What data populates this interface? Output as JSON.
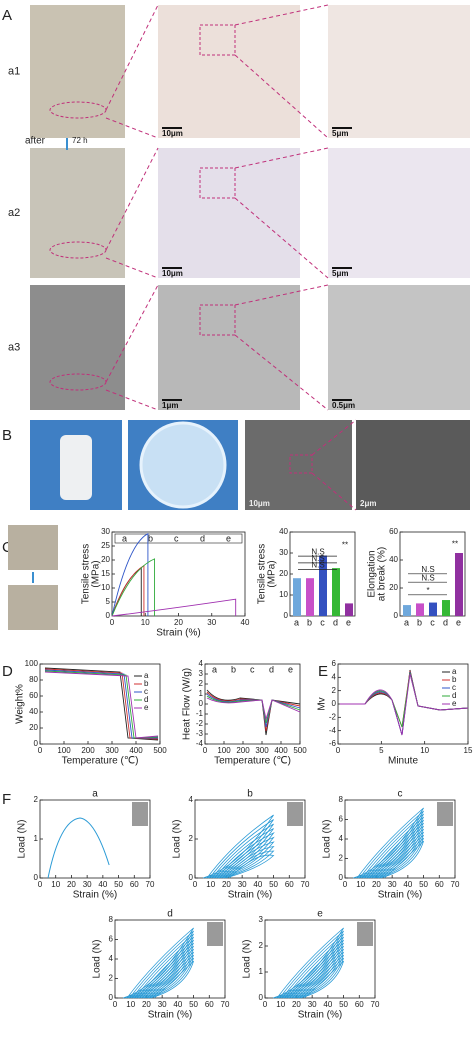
{
  "panel_labels": [
    "A",
    "B",
    "C",
    "D",
    "E",
    "F"
  ],
  "panel_a": {
    "row_labels": [
      "a1",
      "a2",
      "a3"
    ],
    "arrow_label": "after",
    "arrow_time": "72 h",
    "scale_bars": [
      [
        "10μm",
        "5μm"
      ],
      [
        "10μm",
        "5μm"
      ],
      [
        "1μm",
        "0.5μm"
      ]
    ]
  },
  "panel_b": {
    "scale_bars": [
      "10μm",
      "2μm"
    ]
  },
  "panel_c": {
    "curve": {
      "y_label": [
        "Tensile stress",
        "(MPa)"
      ],
      "x_label": "Strain (%)",
      "yticks": [
        0,
        5,
        10,
        15,
        20,
        25,
        30
      ],
      "xticks": [
        0,
        10,
        20,
        30,
        40
      ],
      "legend": [
        "a",
        "b",
        "c",
        "d",
        "e"
      ]
    },
    "strength": {
      "y_label": [
        "Tensile stress",
        "(MPa)"
      ],
      "yticks": [
        0,
        10,
        20,
        30,
        40
      ],
      "categories": [
        "a",
        "b",
        "c",
        "d",
        "e"
      ],
      "annotations": [
        "N.S",
        "N.S",
        "N.S",
        "**"
      ]
    },
    "elongation": {
      "y_label": [
        "Elongation",
        "at break (%)"
      ],
      "yticks": [
        0,
        20,
        40,
        60
      ],
      "categories": [
        "a",
        "b",
        "c",
        "d",
        "e"
      ],
      "annotations": [
        "*",
        "N.S",
        "N.S",
        "**"
      ]
    }
  },
  "panel_d": {
    "tga": {
      "y_label": "Weight%",
      "x_label": "Temperature (℃)",
      "yticks": [
        0,
        20,
        40,
        60,
        80,
        100
      ],
      "xticks": [
        0,
        100,
        200,
        300,
        400,
        500
      ],
      "legend": [
        "a",
        "b",
        "c",
        "d",
        "e"
      ]
    },
    "dsc": {
      "y_label": "Heat Flow (W/g)",
      "x_label": "Temperature (℃)",
      "yticks": [
        -4,
        -3,
        -2,
        -1,
        0,
        1,
        2,
        3,
        4
      ],
      "xticks": [
        0,
        100,
        200,
        300,
        400,
        500
      ],
      "legend": [
        "a",
        "b",
        "c",
        "d",
        "e"
      ]
    }
  },
  "panel_e": {
    "y_label": "Mv",
    "x_label": "Minute",
    "yticks": [
      -6,
      -4,
      -2,
      0,
      2,
      4,
      6
    ],
    "xticks": [
      0,
      5,
      10,
      15
    ],
    "legend": [
      "a",
      "b",
      "c",
      "d",
      "e"
    ]
  },
  "panel_f": [
    {
      "title": "a",
      "y_label": "Load (N)",
      "x_label": "Strain (%)",
      "yticks": [
        0,
        1,
        2
      ],
      "xticks": [
        0,
        10,
        20,
        30,
        40,
        50,
        60,
        70
      ]
    },
    {
      "title": "b",
      "y_label": "Load (N)",
      "x_label": "Strain (%)",
      "yticks": [
        0,
        2,
        4
      ],
      "xticks": [
        0,
        10,
        20,
        30,
        40,
        50,
        60,
        70
      ]
    },
    {
      "title": "c",
      "y_label": "Load (N)",
      "x_label": "Strain (%)",
      "yticks": [
        0,
        2,
        4,
        6,
        8
      ],
      "xticks": [
        0,
        10,
        20,
        30,
        40,
        50,
        60,
        70
      ]
    },
    {
      "title": "d",
      "y_label": "Load (N)",
      "x_label": "Strain (%)",
      "yticks": [
        0,
        2,
        4,
        6,
        8
      ],
      "xticks": [
        0,
        10,
        20,
        30,
        40,
        50,
        60,
        70
      ]
    },
    {
      "title": "e",
      "y_label": "Load (N)",
      "x_label": "Strain (%)",
      "yticks": [
        0,
        1,
        2,
        3
      ],
      "xticks": [
        0,
        10,
        20,
        30,
        40,
        50,
        60,
        70
      ]
    }
  ]
}
